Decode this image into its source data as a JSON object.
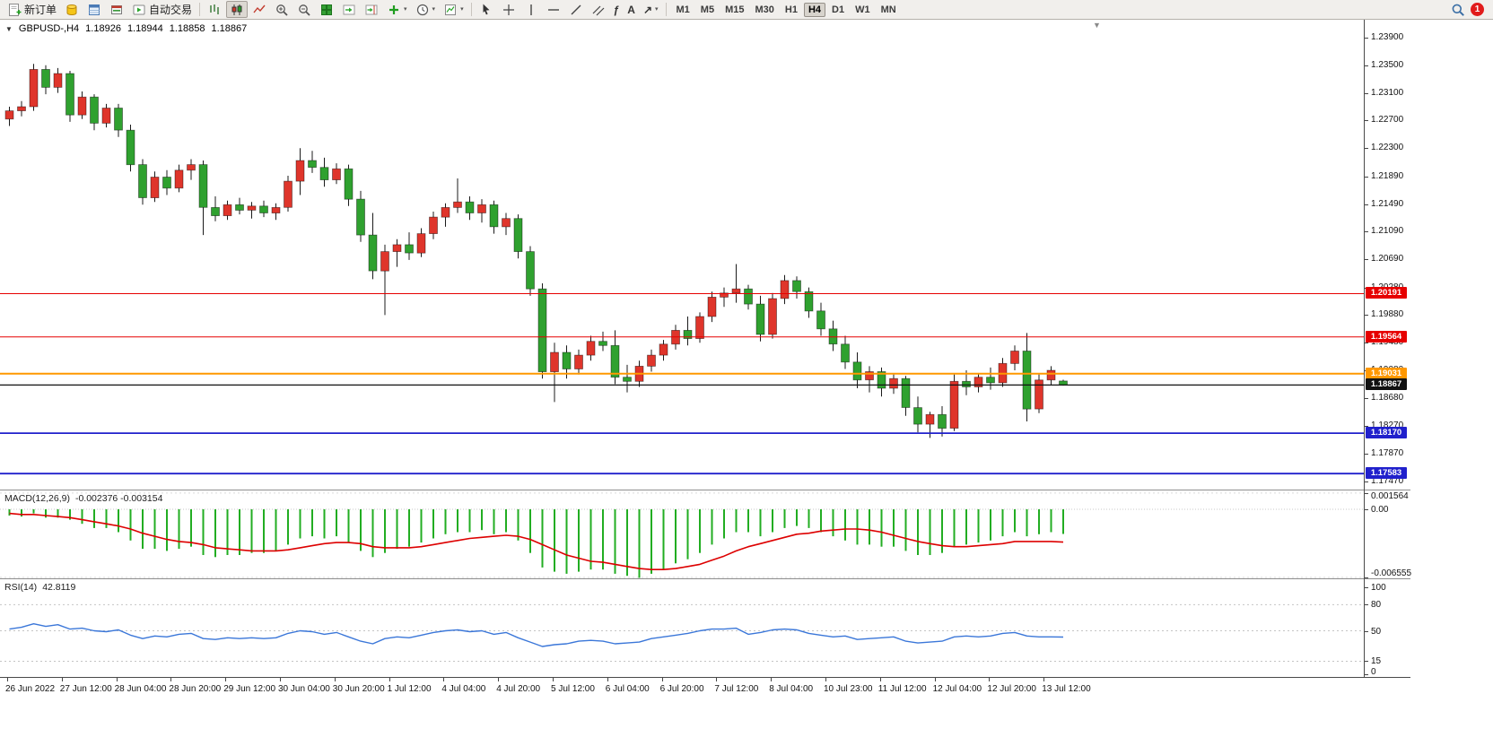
{
  "toolbar": {
    "new_order": "新订单",
    "auto_trading": "自动交易",
    "timeframes": [
      "M1",
      "M5",
      "M15",
      "M30",
      "H1",
      "H4",
      "D1",
      "W1",
      "MN"
    ],
    "active_timeframe": "H4",
    "notification_count": "1"
  },
  "icons": {
    "caret": "▾",
    "one_click": "▼",
    "shift_marker": "▼",
    "fib_tool": "ƒ",
    "text_tool": "A",
    "arrows_tool": "↗"
  },
  "quote_bar": {
    "symbol": "GBPUSD-,H4",
    "open": "1.18926",
    "high": "1.18944",
    "low": "1.18858",
    "close": "1.18867"
  },
  "price_axis": {
    "ticks": [
      "1.23900",
      "1.23500",
      "1.23100",
      "1.22700",
      "1.22300",
      "1.21890",
      "1.21490",
      "1.21090",
      "1.20690",
      "1.20280",
      "1.19880",
      "1.19480",
      "1.19080",
      "1.18680",
      "1.18270",
      "1.17870",
      "1.17470"
    ]
  },
  "indicators": {
    "macd": {
      "label": "MACD(12,26,9)",
      "values": "-0.002376 -0.003154",
      "axis": [
        "0.001564",
        "0.00",
        "-0.006555"
      ]
    },
    "rsi": {
      "label": "RSI(14)",
      "value": "42.8119",
      "axis": [
        "100",
        "80",
        "50",
        "15",
        "0"
      ],
      "levels": [
        80,
        50,
        15
      ]
    }
  },
  "time_axis": [
    "26 Jun 2022",
    "27 Jun 12:00",
    "28 Jun 04:00",
    "28 Jun 20:00",
    "29 Jun 12:00",
    "30 Jun 04:00",
    "30 Jun 20:00",
    "1 Jul 12:00",
    "4 Jul 04:00",
    "4 Jul 20:00",
    "5 Jul 12:00",
    "6 Jul 04:00",
    "6 Jul 20:00",
    "7 Jul 12:00",
    "8 Jul 04:00",
    "10 Jul 23:00",
    "11 Jul 12:00",
    "12 Jul 04:00",
    "12 Jul 20:00",
    "13 Jul 12:00"
  ],
  "chart_data": {
    "type": "candlestick",
    "symbol": "GBPUSD",
    "timeframe": "H4",
    "up_color": "#df352b",
    "down_color": "#2fa12f",
    "macd_color": "#22ad22",
    "signal_color": "#dd0000",
    "rsi_color": "#3b77d9",
    "ylim": [
      1.1747,
      1.239
    ],
    "candles": [
      [
        1.2272,
        1.229,
        1.2262,
        1.2284
      ],
      [
        1.2284,
        1.2298,
        1.2276,
        1.229
      ],
      [
        1.229,
        1.2352,
        1.2284,
        1.2344
      ],
      [
        1.2344,
        1.235,
        1.2308,
        1.2318
      ],
      [
        1.2318,
        1.2346,
        1.231,
        1.2338
      ],
      [
        1.2338,
        1.2342,
        1.2268,
        1.2278
      ],
      [
        1.2278,
        1.2312,
        1.2272,
        1.2304
      ],
      [
        1.2304,
        1.2308,
        1.2256,
        1.2266
      ],
      [
        1.2266,
        1.2294,
        1.226,
        1.2288
      ],
      [
        1.2288,
        1.2294,
        1.2246,
        1.2256
      ],
      [
        1.2256,
        1.2264,
        1.2196,
        1.2206
      ],
      [
        1.2206,
        1.2214,
        1.2148,
        1.2158
      ],
      [
        1.2158,
        1.2196,
        1.2152,
        1.2188
      ],
      [
        1.2188,
        1.2198,
        1.2162,
        1.2172
      ],
      [
        1.2172,
        1.2206,
        1.2166,
        1.2198
      ],
      [
        1.2198,
        1.2214,
        1.2184,
        1.2206
      ],
      [
        1.2206,
        1.2212,
        1.2104,
        1.2144
      ],
      [
        1.2144,
        1.216,
        1.2124,
        1.2132
      ],
      [
        1.2132,
        1.2154,
        1.2126,
        1.2148
      ],
      [
        1.2148,
        1.2158,
        1.2134,
        1.214
      ],
      [
        1.214,
        1.2152,
        1.2128,
        1.2146
      ],
      [
        1.2146,
        1.2154,
        1.213,
        1.2136
      ],
      [
        1.2136,
        1.215,
        1.2126,
        1.2144
      ],
      [
        1.2144,
        1.219,
        1.2138,
        1.2182
      ],
      [
        1.2182,
        1.223,
        1.2162,
        1.2212
      ],
      [
        1.2212,
        1.2226,
        1.2194,
        1.2202
      ],
      [
        1.2202,
        1.2216,
        1.2174,
        1.2184
      ],
      [
        1.2184,
        1.2208,
        1.2178,
        1.22
      ],
      [
        1.22,
        1.2206,
        1.2146,
        1.2156
      ],
      [
        1.2156,
        1.2168,
        1.2094,
        1.2104
      ],
      [
        1.2104,
        1.2136,
        1.204,
        1.2052
      ],
      [
        1.2052,
        1.209,
        1.1988,
        1.208
      ],
      [
        1.208,
        1.2098,
        1.2058,
        1.209
      ],
      [
        1.209,
        1.2108,
        1.2068,
        1.2078
      ],
      [
        1.2078,
        1.2114,
        1.2072,
        1.2106
      ],
      [
        1.2106,
        1.2138,
        1.2098,
        1.213
      ],
      [
        1.213,
        1.215,
        1.2116,
        1.2144
      ],
      [
        1.2144,
        1.2186,
        1.2136,
        1.2152
      ],
      [
        1.2152,
        1.216,
        1.2126,
        1.2136
      ],
      [
        1.2136,
        1.2156,
        1.2122,
        1.2148
      ],
      [
        1.2148,
        1.2154,
        1.2106,
        1.2116
      ],
      [
        1.2116,
        1.2136,
        1.2104,
        1.2128
      ],
      [
        1.2128,
        1.2134,
        1.207,
        1.208
      ],
      [
        1.208,
        1.2088,
        1.2016,
        1.2026
      ],
      [
        1.2026,
        1.2034,
        1.1896,
        1.1906
      ],
      [
        1.1906,
        1.1948,
        1.1862,
        1.1934
      ],
      [
        1.1934,
        1.1944,
        1.1896,
        1.191
      ],
      [
        1.191,
        1.1938,
        1.1902,
        1.193
      ],
      [
        1.193,
        1.1958,
        1.1922,
        1.195
      ],
      [
        1.195,
        1.1964,
        1.1936,
        1.1944
      ],
      [
        1.1944,
        1.1966,
        1.1888,
        1.1898
      ],
      [
        1.1898,
        1.1916,
        1.1876,
        1.1892
      ],
      [
        1.1892,
        1.1922,
        1.1884,
        1.1914
      ],
      [
        1.1914,
        1.1938,
        1.1906,
        1.193
      ],
      [
        1.193,
        1.1952,
        1.1922,
        1.1946
      ],
      [
        1.1946,
        1.1974,
        1.1938,
        1.1966
      ],
      [
        1.1966,
        1.1986,
        1.1944,
        1.1954
      ],
      [
        1.1954,
        1.1992,
        1.1948,
        1.1986
      ],
      [
        1.1986,
        1.2022,
        1.1978,
        1.2014
      ],
      [
        1.2014,
        1.2028,
        1.2,
        1.202
      ],
      [
        1.202,
        1.2062,
        1.2006,
        1.2026
      ],
      [
        1.2026,
        1.2032,
        1.1996,
        1.2004
      ],
      [
        1.2004,
        1.2016,
        1.195,
        1.196
      ],
      [
        1.196,
        1.202,
        1.1954,
        1.2012
      ],
      [
        1.2012,
        1.2046,
        1.2004,
        1.2038
      ],
      [
        1.2038,
        1.2044,
        1.2012,
        1.2022
      ],
      [
        1.2022,
        1.2028,
        1.1984,
        1.1994
      ],
      [
        1.1994,
        1.2006,
        1.1958,
        1.1968
      ],
      [
        1.1968,
        1.198,
        1.1936,
        1.1946
      ],
      [
        1.1946,
        1.1958,
        1.191,
        1.192
      ],
      [
        1.192,
        1.1934,
        1.1882,
        1.1894
      ],
      [
        1.1894,
        1.1914,
        1.1876,
        1.1906
      ],
      [
        1.1906,
        1.1912,
        1.187,
        1.1882
      ],
      [
        1.1882,
        1.1902,
        1.1874,
        1.1896
      ],
      [
        1.1896,
        1.19,
        1.1842,
        1.1854
      ],
      [
        1.1854,
        1.187,
        1.1818,
        1.183
      ],
      [
        1.183,
        1.1848,
        1.181,
        1.1844
      ],
      [
        1.1844,
        1.1856,
        1.1812,
        1.1824
      ],
      [
        1.1824,
        1.1902,
        1.182,
        1.1892
      ],
      [
        1.1892,
        1.1908,
        1.1872,
        1.1884
      ],
      [
        1.1884,
        1.1904,
        1.1876,
        1.1898
      ],
      [
        1.1898,
        1.1912,
        1.188,
        1.189
      ],
      [
        1.189,
        1.1926,
        1.1884,
        1.1918
      ],
      [
        1.1918,
        1.1944,
        1.1908,
        1.1936
      ],
      [
        1.1936,
        1.1962,
        1.1834,
        1.1852
      ],
      [
        1.1852,
        1.1902,
        1.1846,
        1.1894
      ],
      [
        1.1894,
        1.1914,
        1.1886,
        1.1908
      ],
      [
        1.18926,
        1.18944,
        1.18858,
        1.18867
      ]
    ],
    "levels": [
      {
        "price": 1.20191,
        "color": "#e60000",
        "width": 1
      },
      {
        "price": 1.19564,
        "color": "#e60000",
        "width": 1
      },
      {
        "price": 1.19031,
        "color": "#ff9800",
        "width": 2
      },
      {
        "price": 1.18867,
        "color": "#111111",
        "width": 1.2
      },
      {
        "price": 1.1817,
        "color": "#2020cc",
        "width": 1.8
      },
      {
        "price": 1.17583,
        "color": "#2020cc",
        "width": 1.8
      }
    ],
    "macd": {
      "histogram": [
        -0.0006,
        -0.0007,
        -0.0004,
        -0.0008,
        -0.0008,
        -0.001,
        -0.0014,
        -0.0018,
        -0.0018,
        -0.0022,
        -0.003,
        -0.0038,
        -0.0038,
        -0.004,
        -0.0038,
        -0.0036,
        -0.0044,
        -0.0046,
        -0.0044,
        -0.0044,
        -0.0042,
        -0.0042,
        -0.004,
        -0.0034,
        -0.0028,
        -0.0026,
        -0.0028,
        -0.0026,
        -0.0032,
        -0.004,
        -0.0046,
        -0.0042,
        -0.0038,
        -0.0036,
        -0.0032,
        -0.0028,
        -0.0024,
        -0.0022,
        -0.0022,
        -0.002,
        -0.0024,
        -0.0022,
        -0.003,
        -0.0042,
        -0.0056,
        -0.006,
        -0.0062,
        -0.006,
        -0.0058,
        -0.0058,
        -0.0062,
        -0.0064,
        -0.0066,
        -0.0062,
        -0.0058,
        -0.0052,
        -0.0048,
        -0.0042,
        -0.0034,
        -0.0028,
        -0.0022,
        -0.0022,
        -0.0026,
        -0.0022,
        -0.0018,
        -0.0016,
        -0.0018,
        -0.0022,
        -0.0026,
        -0.003,
        -0.0034,
        -0.0034,
        -0.0036,
        -0.0036,
        -0.004,
        -0.0044,
        -0.0044,
        -0.0042,
        -0.0036,
        -0.0034,
        -0.0032,
        -0.003,
        -0.0026,
        -0.0022,
        -0.0026,
        -0.0024,
        -0.0022,
        -0.002376
      ],
      "signal": [
        -0.0004,
        -0.0005,
        -0.0005,
        -0.0006,
        -0.0007,
        -0.0008,
        -0.001,
        -0.0012,
        -0.0014,
        -0.0016,
        -0.0019,
        -0.0023,
        -0.0026,
        -0.0029,
        -0.0031,
        -0.0032,
        -0.0034,
        -0.0037,
        -0.0038,
        -0.0039,
        -0.004,
        -0.004,
        -0.004,
        -0.0039,
        -0.0037,
        -0.0035,
        -0.0033,
        -0.0032,
        -0.0032,
        -0.0033,
        -0.0036,
        -0.0037,
        -0.0037,
        -0.0037,
        -0.0036,
        -0.0034,
        -0.0032,
        -0.003,
        -0.0028,
        -0.0027,
        -0.0026,
        -0.0025,
        -0.0026,
        -0.0029,
        -0.0034,
        -0.0039,
        -0.0044,
        -0.0047,
        -0.005,
        -0.0051,
        -0.0053,
        -0.0055,
        -0.0057,
        -0.0058,
        -0.0058,
        -0.0057,
        -0.0055,
        -0.0053,
        -0.0049,
        -0.0045,
        -0.004,
        -0.0036,
        -0.0033,
        -0.003,
        -0.0027,
        -0.0024,
        -0.0023,
        -0.0021,
        -0.002,
        -0.0019,
        -0.0019,
        -0.002,
        -0.0022,
        -0.0025,
        -0.0028,
        -0.0031,
        -0.0033,
        -0.0035,
        -0.0036,
        -0.0036,
        -0.0035,
        -0.0034,
        -0.0033,
        -0.0031,
        -0.0031,
        -0.0031,
        -0.0031,
        -0.003154
      ]
    },
    "rsi": [
      52,
      54,
      58,
      55,
      57,
      52,
      53,
      50,
      49,
      51,
      45,
      41,
      44,
      43,
      46,
      47,
      41,
      40,
      42,
      41,
      42,
      41,
      42,
      47,
      50,
      49,
      46,
      48,
      43,
      38,
      35,
      41,
      43,
      42,
      45,
      48,
      50,
      51,
      49,
      50,
      46,
      48,
      42,
      37,
      32,
      34,
      35,
      38,
      39,
      38,
      35,
      36,
      37,
      41,
      43,
      45,
      47,
      50,
      52,
      52,
      53,
      46,
      48,
      51,
      52,
      51,
      47,
      45,
      43,
      44,
      40,
      41,
      42,
      43,
      38,
      36,
      37,
      38,
      43,
      44,
      43,
      44,
      47,
      48,
      44,
      43,
      43,
      42.8
    ]
  }
}
